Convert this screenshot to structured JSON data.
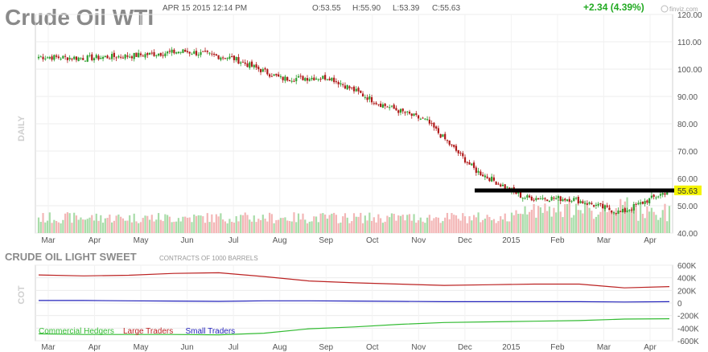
{
  "header": {
    "title": "Crude Oil WTI",
    "datetime": "APR 15 2015 12:14 PM",
    "open": "O:53.55",
    "high": "H:55.90",
    "low": "L:53.39",
    "close": "C:55.63",
    "change": "+2.34 (4.39%)",
    "brand": "finviz.com"
  },
  "colors": {
    "up_candle": "#2e9e2e",
    "down_candle": "#b01a1a",
    "volume_up": "#a8dca8",
    "volume_down": "#f3b6b6",
    "last_price_bg": "#f4f400",
    "change_text": "#22aa22",
    "commercial": "#33bb33",
    "large": "#bb2222",
    "small": "#2222bb"
  },
  "chart_data": [
    {
      "type": "candlestick",
      "title": "Crude Oil WTI",
      "period_label": "DAILY",
      "x_ticks": [
        "Mar",
        "Apr",
        "May",
        "Jun",
        "Jul",
        "Aug",
        "Sep",
        "Oct",
        "Nov",
        "Dec",
        "2015",
        "Feb",
        "Mar",
        "Apr"
      ],
      "y_ticks": [
        "120.00",
        "110.00",
        "100.00",
        "90.00",
        "80.00",
        "70.00",
        "60.00",
        "50.00",
        "40.00"
      ],
      "ylim": [
        40,
        120
      ],
      "last_price_label": "55.63",
      "last_price": 55.63,
      "resistance_level": 55.6,
      "grid": true,
      "monthly_closes": [
        {
          "month": "Mar",
          "close": 104.5
        },
        {
          "month": "Apr",
          "close": 104.0
        },
        {
          "month": "May",
          "close": 105.0
        },
        {
          "month": "Jun",
          "close": 106.5
        },
        {
          "month": "Jul",
          "close": 104.0
        },
        {
          "month": "Aug",
          "close": 96.5
        },
        {
          "month": "Sep",
          "close": 97.0
        },
        {
          "month": "Oct",
          "close": 87.5
        },
        {
          "month": "Nov",
          "close": 81.0
        },
        {
          "month": "Dec",
          "close": 63.0
        },
        {
          "month": "2015",
          "close": 53.0
        },
        {
          "month": "Feb",
          "close": 52.5
        },
        {
          "month": "Mar",
          "close": 47.5
        },
        {
          "month": "Apr",
          "close": 55.63
        }
      ]
    },
    {
      "type": "line",
      "title": "CRUDE OIL LIGHT SWEET",
      "subtitle": "CONTRACTS OF 1000 BARRELS",
      "ylabel": "COT",
      "x_ticks": [
        "Mar",
        "Apr",
        "May",
        "Jun",
        "Jul",
        "Aug",
        "Sep",
        "Oct",
        "Nov",
        "Dec",
        "2015",
        "Feb",
        "Mar",
        "Apr"
      ],
      "y_ticks": [
        "600K",
        "400K",
        "200K",
        "0",
        "-200K",
        "-400K",
        "-600K"
      ],
      "ylim": [
        -600,
        600
      ],
      "legend_position": "bottom-left",
      "series": [
        {
          "name": "Commercial Hedgers",
          "values": [
            -490,
            -500,
            -500,
            -500,
            -505,
            -480,
            -410,
            -380,
            -340,
            -310,
            -300,
            -290,
            -280,
            -255,
            -250
          ]
        },
        {
          "name": "Large Traders",
          "values": [
            445,
            430,
            440,
            470,
            480,
            420,
            350,
            320,
            300,
            280,
            290,
            300,
            300,
            240,
            260
          ]
        },
        {
          "name": "Small Traders",
          "values": [
            40,
            40,
            35,
            30,
            25,
            35,
            35,
            30,
            25,
            20,
            20,
            20,
            20,
            15,
            20
          ]
        }
      ]
    }
  ]
}
